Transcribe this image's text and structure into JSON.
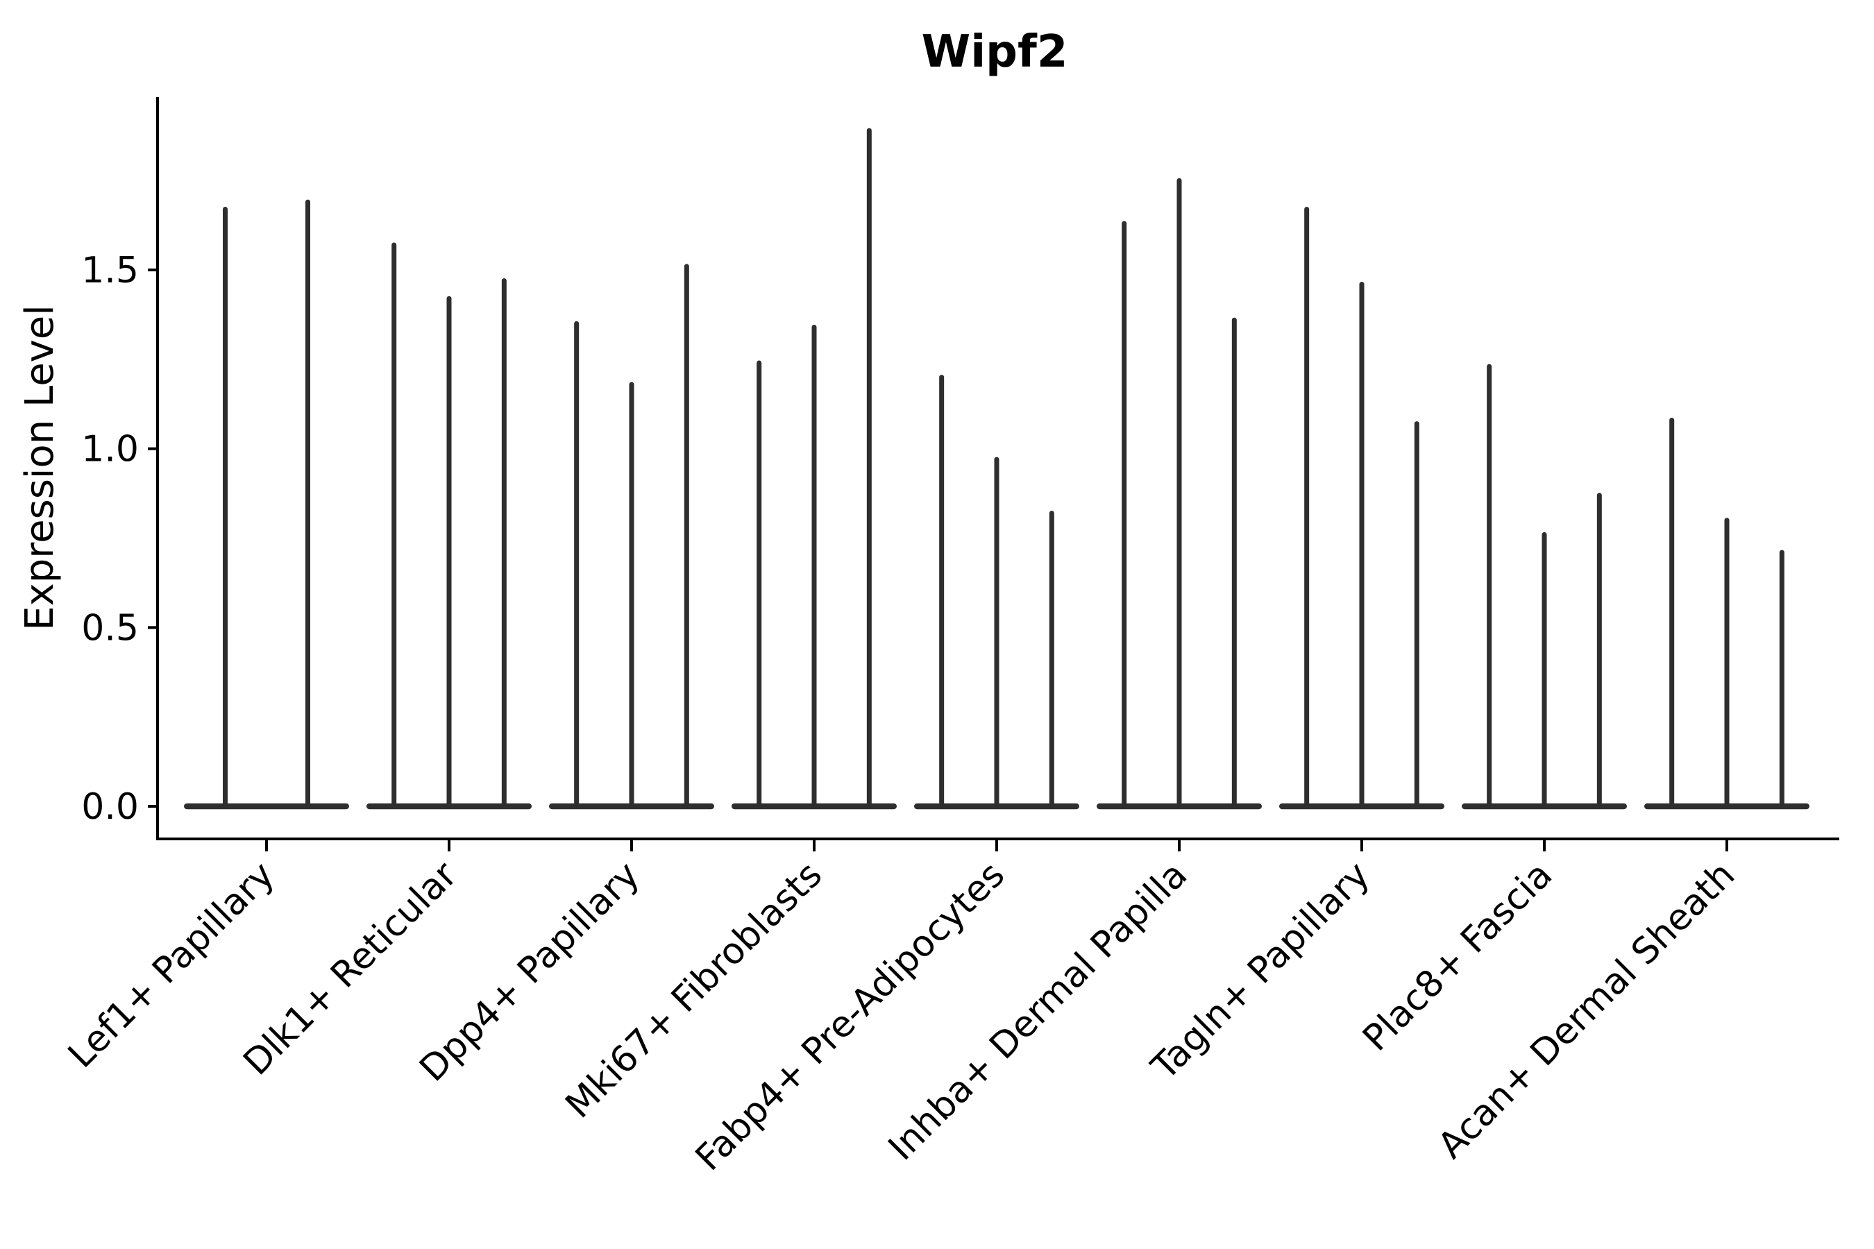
{
  "chart_data": {
    "type": "violin",
    "title": "Wipf2",
    "ylabel": "Expression Level",
    "xlabel": "",
    "ylim": [
      0,
      1.95
    ],
    "yticks": [
      0.0,
      0.5,
      1.0,
      1.5
    ],
    "grid": false,
    "legend": "none",
    "style_note": "needle-style single-cell expression violins: wide flat density at 0 with a thin spike up to the max expression value; 2-3 violins dodged per category",
    "categories": [
      "Lef1+ Papillary",
      "Dlk1+ Reticular",
      "Dpp4+ Papillary",
      "Mki67+ Fibroblasts",
      "Fabp4+ Pre-Adipocytes",
      "Inhba+ Dermal Papilla",
      "Tagln+ Papillary",
      "Plac8+ Fascia",
      "Acan+ Dermal Sheath"
    ],
    "groups": [
      {
        "category": "Lef1+ Papillary",
        "violin_maxima": [
          1.67,
          1.69
        ]
      },
      {
        "category": "Dlk1+ Reticular",
        "violin_maxima": [
          1.57,
          1.42,
          1.47
        ]
      },
      {
        "category": "Dpp4+ Papillary",
        "violin_maxima": [
          1.35,
          1.18,
          1.51
        ]
      },
      {
        "category": "Mki67+ Fibroblasts",
        "violin_maxima": [
          1.24,
          1.34,
          1.89
        ]
      },
      {
        "category": "Fabp4+ Pre-Adipocytes",
        "violin_maxima": [
          1.2,
          0.97,
          0.82
        ]
      },
      {
        "category": "Inhba+ Dermal Papilla",
        "violin_maxima": [
          1.63,
          1.75,
          1.36
        ]
      },
      {
        "category": "Tagln+ Papillary",
        "violin_maxima": [
          1.67,
          1.46,
          1.07
        ]
      },
      {
        "category": "Plac8+ Fascia",
        "violin_maxima": [
          1.23,
          0.76,
          0.87
        ]
      },
      {
        "category": "Acan+ Dermal Sheath",
        "violin_maxima": [
          1.08,
          0.8,
          0.71
        ]
      }
    ],
    "colors": {
      "violin": "#2e2e2e",
      "axis": "#000000",
      "text": "#000000",
      "background": "#ffffff"
    }
  }
}
